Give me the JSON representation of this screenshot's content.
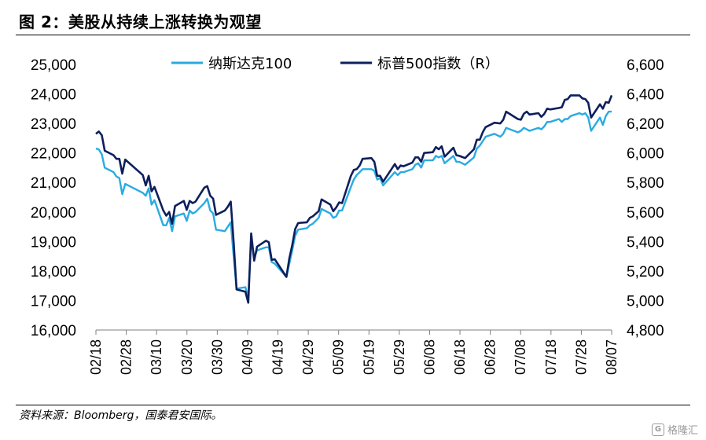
{
  "header": {
    "title": "图 2：美股从持续上涨转换为观望"
  },
  "footer": {
    "source": "资料来源：Bloomberg，国泰君安国际。",
    "watermark": "格隆汇"
  },
  "chart_data": {
    "type": "line",
    "title": "",
    "legend_position": "top-center",
    "x_tick_labels": [
      "02/18",
      "02/28",
      "03/10",
      "03/20",
      "03/30",
      "04/09",
      "04/19",
      "04/29",
      "05/09",
      "05/19",
      "05/29",
      "06/08",
      "06/18",
      "06/28",
      "07/08",
      "07/18",
      "07/28",
      "08/07"
    ],
    "y_left": {
      "min": 16000,
      "max": 25000,
      "step": 1000,
      "tick_labels": [
        "16,000",
        "17,000",
        "18,000",
        "19,000",
        "20,000",
        "21,000",
        "22,000",
        "23,000",
        "24,000",
        "25,000"
      ]
    },
    "y_right": {
      "min": 4800,
      "max": 6600,
      "step": 200,
      "tick_labels": [
        "4,800",
        "5,000",
        "5,200",
        "5,400",
        "5,600",
        "5,800",
        "6,000",
        "6,200",
        "6,400",
        "6,600"
      ]
    },
    "series": [
      {
        "name": "纳斯达克100",
        "axis": "left",
        "color": "#29ABE2",
        "points": [
          [
            "02/18",
            22150
          ],
          [
            "02/19",
            22120
          ],
          [
            "02/20",
            21950
          ],
          [
            "02/21",
            21500
          ],
          [
            "02/24",
            21350
          ],
          [
            "02/25",
            21200
          ],
          [
            "02/26",
            21150
          ],
          [
            "02/27",
            20600
          ],
          [
            "02/28",
            20950
          ],
          [
            "03/03",
            20650
          ],
          [
            "03/04",
            20550
          ],
          [
            "03/05",
            20800
          ],
          [
            "03/06",
            20250
          ],
          [
            "03/07",
            20400
          ],
          [
            "03/10",
            19550
          ],
          [
            "03/11",
            19550
          ],
          [
            "03/12",
            19800
          ],
          [
            "03/13",
            19350
          ],
          [
            "03/14",
            19850
          ],
          [
            "03/17",
            19950
          ],
          [
            "03/18",
            19700
          ],
          [
            "03/19",
            20050
          ],
          [
            "03/20",
            19950
          ],
          [
            "03/21",
            20000
          ],
          [
            "03/24",
            20300
          ],
          [
            "03/25",
            20450
          ],
          [
            "03/26",
            20050
          ],
          [
            "03/27",
            19950
          ],
          [
            "03/28",
            19400
          ],
          [
            "03/31",
            19350
          ],
          [
            "04/01",
            19500
          ],
          [
            "04/02",
            19650
          ],
          [
            "04/03",
            18500
          ],
          [
            "04/04",
            17400
          ],
          [
            "04/07",
            17450
          ],
          [
            "04/08",
            17100
          ],
          [
            "04/09",
            19050
          ],
          [
            "04/10",
            18450
          ],
          [
            "04/11",
            18700
          ],
          [
            "04/14",
            18800
          ],
          [
            "04/15",
            18800
          ],
          [
            "04/16",
            18300
          ],
          [
            "04/17",
            18250
          ],
          [
            "04/21",
            17800
          ],
          [
            "04/22",
            18250
          ],
          [
            "04/23",
            18700
          ],
          [
            "04/24",
            19200
          ],
          [
            "04/25",
            19400
          ],
          [
            "04/28",
            19450
          ],
          [
            "04/29",
            19550
          ],
          [
            "04/30",
            19600
          ],
          [
            "05/01",
            19800
          ],
          [
            "05/02",
            20100
          ],
          [
            "05/05",
            19950
          ],
          [
            "05/06",
            19800
          ],
          [
            "05/07",
            19850
          ],
          [
            "05/08",
            20050
          ],
          [
            "05/09",
            20050
          ],
          [
            "05/12",
            20850
          ],
          [
            "05/13",
            21100
          ],
          [
            "05/14",
            21250
          ],
          [
            "05/15",
            21350
          ],
          [
            "05/16",
            21450
          ],
          [
            "05/19",
            21450
          ],
          [
            "05/20",
            21400
          ],
          [
            "05/21",
            21100
          ],
          [
            "05/22",
            21150
          ],
          [
            "05/23",
            20900
          ],
          [
            "05/27",
            21350
          ],
          [
            "05/28",
            21250
          ],
          [
            "05/29",
            21350
          ],
          [
            "05/30",
            21350
          ],
          [
            "06/02",
            21450
          ],
          [
            "06/03",
            21600
          ],
          [
            "06/04",
            21650
          ],
          [
            "06/05",
            21500
          ],
          [
            "06/06",
            21750
          ],
          [
            "06/09",
            21750
          ],
          [
            "06/10",
            21900
          ],
          [
            "06/11",
            21850
          ],
          [
            "06/12",
            21900
          ],
          [
            "06/13",
            21650
          ],
          [
            "06/16",
            21900
          ],
          [
            "06/17",
            21700
          ],
          [
            "06/18",
            21700
          ],
          [
            "06/20",
            21600
          ],
          [
            "06/23",
            21850
          ],
          [
            "06/24",
            22150
          ],
          [
            "06/25",
            22250
          ],
          [
            "06/26",
            22400
          ],
          [
            "06/27",
            22550
          ],
          [
            "06/30",
            22650
          ],
          [
            "07/01",
            22550
          ],
          [
            "07/02",
            22650
          ],
          [
            "07/03",
            22850
          ],
          [
            "07/07",
            22700
          ],
          [
            "07/08",
            22750
          ],
          [
            "07/09",
            22850
          ],
          [
            "07/10",
            22800
          ],
          [
            "07/11",
            22750
          ],
          [
            "07/14",
            22850
          ],
          [
            "07/15",
            22800
          ],
          [
            "07/16",
            22900
          ],
          [
            "07/17",
            23050
          ],
          [
            "07/18",
            23050
          ],
          [
            "07/21",
            23150
          ],
          [
            "07/22",
            23050
          ],
          [
            "07/23",
            23150
          ],
          [
            "07/24",
            23150
          ],
          [
            "07/25",
            23250
          ],
          [
            "07/28",
            23350
          ],
          [
            "07/29",
            23300
          ],
          [
            "07/30",
            23350
          ],
          [
            "07/31",
            23200
          ],
          [
            "08/01",
            22750
          ],
          [
            "08/04",
            23200
          ],
          [
            "08/05",
            22950
          ],
          [
            "08/06",
            23250
          ],
          [
            "08/07",
            23400
          ],
          [
            "08/08",
            23400
          ]
        ]
      },
      {
        "name": "标普500指数（R）",
        "axis": "right",
        "color": "#0D1F5C",
        "points": [
          [
            "02/18",
            6130
          ],
          [
            "02/19",
            6145
          ],
          [
            "02/20",
            6120
          ],
          [
            "02/21",
            6015
          ],
          [
            "02/24",
            5985
          ],
          [
            "02/25",
            5960
          ],
          [
            "02/26",
            5960
          ],
          [
            "02/27",
            5860
          ],
          [
            "02/28",
            5955
          ],
          [
            "03/03",
            5850
          ],
          [
            "03/04",
            5780
          ],
          [
            "03/05",
            5845
          ],
          [
            "03/06",
            5740
          ],
          [
            "03/07",
            5770
          ],
          [
            "03/10",
            5610
          ],
          [
            "03/11",
            5575
          ],
          [
            "03/12",
            5600
          ],
          [
            "03/13",
            5520
          ],
          [
            "03/14",
            5640
          ],
          [
            "03/17",
            5675
          ],
          [
            "03/18",
            5615
          ],
          [
            "03/19",
            5675
          ],
          [
            "03/20",
            5660
          ],
          [
            "03/21",
            5670
          ],
          [
            "03/24",
            5765
          ],
          [
            "03/25",
            5775
          ],
          [
            "03/26",
            5710
          ],
          [
            "03/27",
            5690
          ],
          [
            "03/28",
            5580
          ],
          [
            "03/31",
            5610
          ],
          [
            "04/01",
            5635
          ],
          [
            "04/02",
            5670
          ],
          [
            "04/03",
            5395
          ],
          [
            "04/04",
            5075
          ],
          [
            "04/07",
            5060
          ],
          [
            "04/08",
            4985
          ],
          [
            "04/09",
            5455
          ],
          [
            "04/10",
            5270
          ],
          [
            "04/11",
            5365
          ],
          [
            "04/14",
            5405
          ],
          [
            "04/15",
            5395
          ],
          [
            "04/16",
            5275
          ],
          [
            "04/17",
            5280
          ],
          [
            "04/21",
            5160
          ],
          [
            "04/22",
            5285
          ],
          [
            "04/23",
            5375
          ],
          [
            "04/24",
            5485
          ],
          [
            "04/25",
            5525
          ],
          [
            "04/28",
            5530
          ],
          [
            "04/29",
            5560
          ],
          [
            "04/30",
            5570
          ],
          [
            "05/01",
            5605
          ],
          [
            "05/02",
            5685
          ],
          [
            "05/05",
            5650
          ],
          [
            "05/06",
            5605
          ],
          [
            "05/07",
            5630
          ],
          [
            "05/08",
            5665
          ],
          [
            "05/09",
            5660
          ],
          [
            "05/12",
            5845
          ],
          [
            "05/13",
            5885
          ],
          [
            "05/14",
            5890
          ],
          [
            "05/15",
            5915
          ],
          [
            "05/16",
            5960
          ],
          [
            "05/19",
            5965
          ],
          [
            "05/20",
            5940
          ],
          [
            "05/21",
            5845
          ],
          [
            "05/22",
            5845
          ],
          [
            "05/23",
            5805
          ],
          [
            "05/27",
            5925
          ],
          [
            "05/28",
            5890
          ],
          [
            "05/29",
            5915
          ],
          [
            "05/30",
            5910
          ],
          [
            "06/02",
            5935
          ],
          [
            "06/03",
            5970
          ],
          [
            "06/04",
            5970
          ],
          [
            "06/05",
            5940
          ],
          [
            "06/06",
            6000
          ],
          [
            "06/09",
            6005
          ],
          [
            "06/10",
            6040
          ],
          [
            "06/11",
            6025
          ],
          [
            "06/12",
            6045
          ],
          [
            "06/13",
            5975
          ],
          [
            "06/16",
            6035
          ],
          [
            "06/17",
            5985
          ],
          [
            "06/18",
            5980
          ],
          [
            "06/20",
            5965
          ],
          [
            "06/23",
            6025
          ],
          [
            "06/24",
            6090
          ],
          [
            "06/25",
            6090
          ],
          [
            "06/26",
            6140
          ],
          [
            "06/27",
            6175
          ],
          [
            "06/30",
            6205
          ],
          [
            "07/01",
            6200
          ],
          [
            "07/02",
            6225
          ],
          [
            "07/03",
            6280
          ],
          [
            "07/07",
            6230
          ],
          [
            "07/08",
            6225
          ],
          [
            "07/09",
            6265
          ],
          [
            "07/10",
            6280
          ],
          [
            "07/11",
            6260
          ],
          [
            "07/14",
            6270
          ],
          [
            "07/15",
            6245
          ],
          [
            "07/16",
            6265
          ],
          [
            "07/17",
            6300
          ],
          [
            "07/18",
            6295
          ],
          [
            "07/21",
            6305
          ],
          [
            "07/22",
            6310
          ],
          [
            "07/23",
            6360
          ],
          [
            "07/24",
            6365
          ],
          [
            "07/25",
            6390
          ],
          [
            "07/28",
            6390
          ],
          [
            "07/29",
            6370
          ],
          [
            "07/30",
            6365
          ],
          [
            "07/31",
            6340
          ],
          [
            "08/01",
            6240
          ],
          [
            "08/04",
            6330
          ],
          [
            "08/05",
            6300
          ],
          [
            "08/06",
            6345
          ],
          [
            "08/07",
            6340
          ],
          [
            "08/08",
            6390
          ]
        ]
      }
    ]
  }
}
